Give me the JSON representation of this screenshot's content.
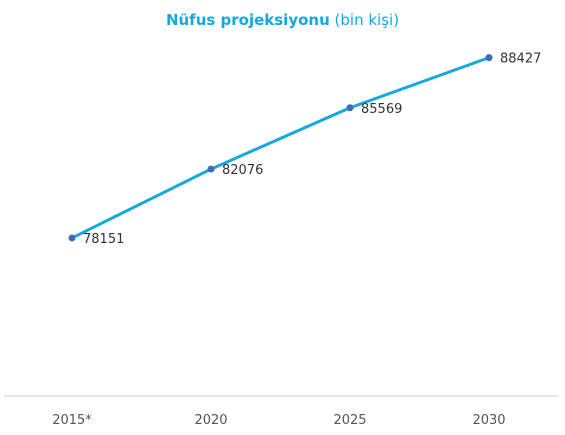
{
  "chart_data": {
    "type": "line",
    "title": "Nüfus projeksiyonu",
    "subtitle": "(bin kişi)",
    "categories": [
      "2015*",
      "2020",
      "2025",
      "2030"
    ],
    "series": [
      {
        "values": [
          78151,
          82076,
          85569,
          88427
        ]
      }
    ],
    "ylim": [
      70000,
      90000
    ],
    "grid": false,
    "legend": "none",
    "colors": {
      "line": "#13a9e0",
      "marker": "#3a6fb5",
      "axis": "#cccccc",
      "title": "#13a9e0"
    }
  }
}
